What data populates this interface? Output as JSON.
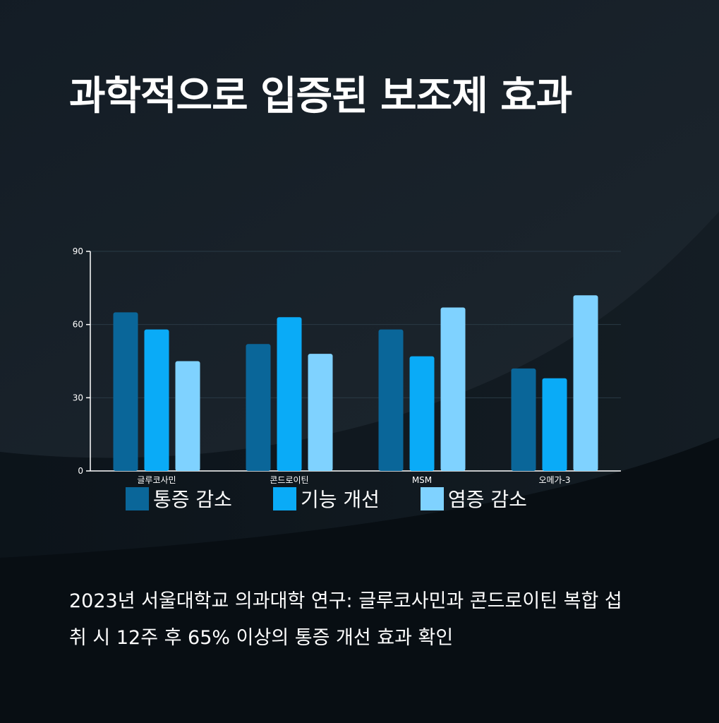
{
  "page": {
    "title": "과학적으로 입증된 보조제 효과",
    "caption": "2023년 서울대학교 의과대학 연구: 글루코사민과 콘드로이틴 복합 섭취 시 12주 후 65% 이상의 통증 개선 효과 확인"
  },
  "colors": {
    "background": "#0a1118",
    "axis": "#ffffff",
    "grid": "#2a3a45"
  },
  "chart_data": {
    "type": "bar",
    "title": "",
    "xlabel": "",
    "ylabel": "",
    "categories": [
      "글루코사민",
      "콘드로이틴",
      "MSM",
      "오메가-3"
    ],
    "ylim": [
      0,
      90
    ],
    "yticks": [
      0,
      30,
      60,
      90
    ],
    "grid": true,
    "legend_position": "bottom",
    "series": [
      {
        "name": "통증 감소",
        "color": "#0a6699",
        "values": [
          65,
          52,
          58,
          42
        ]
      },
      {
        "name": "기능 개선",
        "color": "#0aabf7",
        "values": [
          58,
          63,
          47,
          38
        ]
      },
      {
        "name": "염증 감소",
        "color": "#7fd2ff",
        "values": [
          45,
          48,
          67,
          72
        ]
      }
    ]
  }
}
